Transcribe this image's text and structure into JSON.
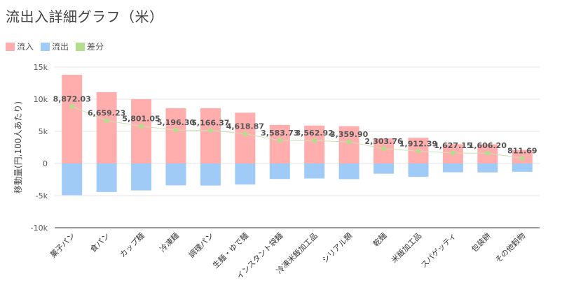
{
  "title": "流出入詳細グラフ（米）",
  "legend": {
    "inflow": "流入",
    "outflow": "流出",
    "diff": "差分"
  },
  "colors": {
    "inflow": "#ffadad",
    "outflow": "#a0cbf7",
    "diff": "#b5dd8e",
    "diff_line": "#c7e3b0",
    "axis": "#333333",
    "grid": "#e6e6e6"
  },
  "chart_data": {
    "type": "bar",
    "title": "流出入詳細グラフ（米）",
    "xlabel": "",
    "ylabel": "移動量(円,100人あたり)",
    "ylim": [
      -10000,
      15000
    ],
    "yticks": [
      -10000,
      -5000,
      0,
      5000,
      10000,
      15000
    ],
    "ytick_labels": [
      "-10k",
      "-5k",
      "0",
      "5k",
      "10k",
      "15k"
    ],
    "grid": true,
    "legend_position": "top-left",
    "categories": [
      "菓子パン",
      "食パン",
      "カップ麺",
      "冷凍麺",
      "調理パン",
      "生麺・ゆで麺",
      "インスタント袋麺",
      "冷凍米飯加工品",
      "シリアル類",
      "乾麺",
      "米飯加工品",
      "スパゲッティ",
      "包装餅",
      "その他穀物"
    ],
    "series": [
      {
        "name": "流入",
        "type": "bar",
        "values": [
          13800,
          11100,
          10000,
          8600,
          8600,
          7900,
          6000,
          5900,
          5800,
          3900,
          4000,
          3000,
          3000,
          2100
        ]
      },
      {
        "name": "流出",
        "type": "bar",
        "values": [
          -4928,
          -4441,
          -4199,
          -3404,
          -3434,
          -3281,
          -2416,
          -2337,
          -2440,
          -1596,
          -2088,
          -1373,
          -1394,
          -1288
        ]
      },
      {
        "name": "差分",
        "type": "line",
        "values": [
          8872.03,
          6659.23,
          5801.05,
          5196.3,
          5166.37,
          4618.87,
          3583.73,
          3562.92,
          3359.9,
          2303.76,
          1912.39,
          1627.15,
          1606.2,
          811.69
        ]
      }
    ],
    "data_labels": [
      "8,872.03",
      "6,659.23",
      "5,801.05",
      "5,196.30",
      "5,166.37",
      "4,618.87",
      "3,583.73",
      "3,562.92",
      "3,359.90",
      "2,303.76",
      "1,912.39",
      "1,627.15",
      "1,606.20",
      "811.69"
    ]
  }
}
